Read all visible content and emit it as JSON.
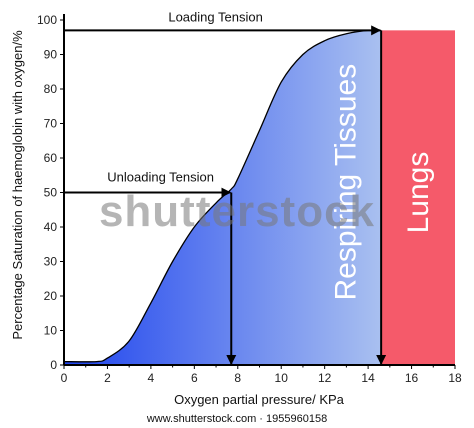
{
  "chart_data": {
    "type": "line",
    "title": "",
    "xlabel": "Oxygen partial pressure/ KPa",
    "ylabel": "Percentage Saturation of haemoglobin with oxygen/%",
    "xlim": [
      0,
      18
    ],
    "ylim": [
      0,
      100
    ],
    "xticks": [
      0,
      2,
      4,
      6,
      8,
      10,
      12,
      14,
      16,
      18
    ],
    "yticks": [
      0,
      10,
      20,
      30,
      40,
      50,
      60,
      70,
      80,
      90,
      100
    ],
    "grid": false,
    "series": [
      {
        "x": [
          0,
          1.5,
          2,
          3,
          4,
          5,
          6,
          7,
          7.7,
          8,
          9,
          10,
          11,
          12,
          13,
          14,
          14.6
        ],
        "y": [
          1,
          1,
          2,
          7,
          18,
          30,
          40,
          47,
          51,
          54,
          68,
          82,
          90,
          94,
          96,
          97,
          97
        ]
      }
    ],
    "regions": [
      {
        "label": "Respiring Tissues",
        "x_from": 2,
        "x_to": 14.6,
        "color_start": "#1f44ee",
        "color_end": "#a9c0f0"
      },
      {
        "label": "Lungs",
        "x_from": 14.6,
        "x_to": 18,
        "color": "#f55a6a"
      }
    ],
    "annotations": [
      {
        "label": "Loading Tension",
        "x": 14.6,
        "y": 97
      },
      {
        "label": "Unloading Tension",
        "x": 7.7,
        "y": 50
      }
    ]
  },
  "watermark": "shutterstock",
  "credit": "www.shutterstock.com · 1955960158"
}
